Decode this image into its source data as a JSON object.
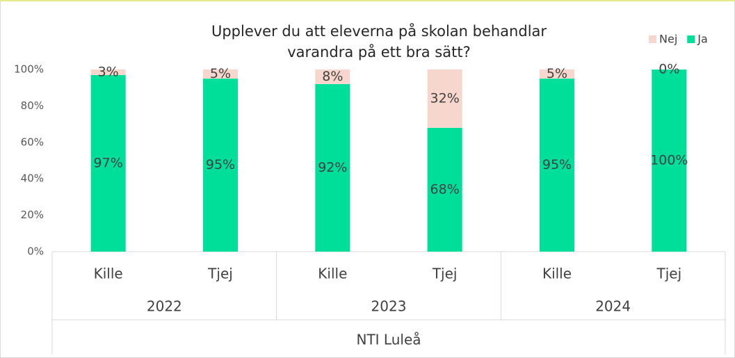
{
  "chart_data": {
    "type": "stacked_bar",
    "title": [
      "Upplever du att eleverna på skolan behandlar",
      "varandra på ett bra sätt?"
    ],
    "categories": [
      "Kille",
      "Tjej",
      "Kille",
      "Tjej",
      "Kille",
      "Tjej"
    ],
    "groups": [
      "2022",
      "2023",
      "2024"
    ],
    "outer_group": "NTI Luleå",
    "series": [
      {
        "name": "Ja",
        "color": "#00df9a",
        "values": [
          97,
          95,
          92,
          68,
          95,
          100
        ],
        "value_labels": [
          "97%",
          "95%",
          "92%",
          "68%",
          "95%",
          "100%"
        ]
      },
      {
        "name": "Nej",
        "color": "#f6d6cd",
        "values": [
          3,
          5,
          8,
          32,
          5,
          0
        ],
        "value_labels": [
          "3%",
          "5%",
          "8%",
          "32%",
          "5%",
          "0%"
        ]
      }
    ],
    "legend_order": [
      1,
      0
    ],
    "ylim": [
      0,
      100
    ],
    "yticks": [
      {
        "value": 0,
        "label": "0%"
      },
      {
        "value": 20,
        "label": "20%"
      },
      {
        "value": 40,
        "label": "40%"
      },
      {
        "value": 60,
        "label": "60%"
      },
      {
        "value": 80,
        "label": "80%"
      },
      {
        "value": 100,
        "label": "100%"
      }
    ]
  }
}
